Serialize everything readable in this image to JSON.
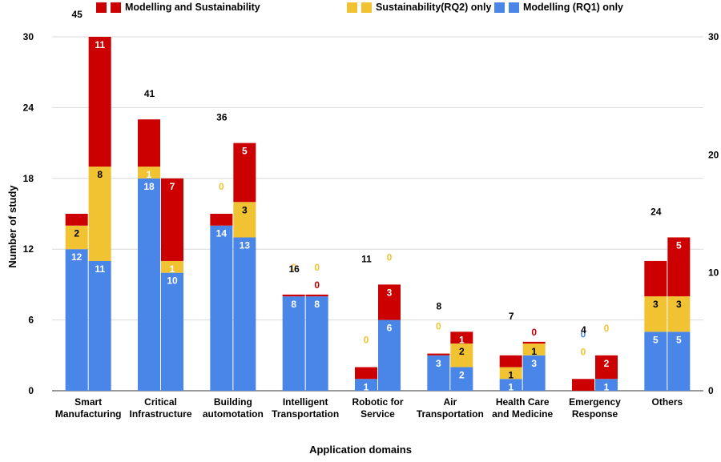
{
  "legend": {
    "both": "Modelling and Sustainability",
    "sust": "Sustainability(RQ2) only",
    "model": "Modelling (RQ1) only"
  },
  "colors": {
    "model": "#4a86e8",
    "sust": "#f1c232",
    "both": "#cc0000"
  },
  "chart_data": {
    "type": "bar",
    "stacked": true,
    "title": "",
    "xlabel": "Application domains",
    "ylabel": "Number of study",
    "ylim": [
      0,
      30
    ],
    "y_ticks": [
      0,
      6,
      12,
      18,
      24,
      30
    ],
    "y2lim": [
      0,
      30
    ],
    "y2_ticks": [
      0,
      10,
      20,
      30
    ],
    "grid": true,
    "legend_position": "top",
    "categories": [
      [
        "Smart",
        "Manufacturing"
      ],
      [
        "Critical",
        "Infrastructure"
      ],
      [
        "Building",
        "automotation"
      ],
      [
        "Intelligent",
        "Transportation"
      ],
      [
        "Robotic for",
        "Service"
      ],
      [
        "Air",
        "Transportation"
      ],
      [
        "Health Care",
        "and Medicine"
      ],
      [
        "Emergency",
        "Response"
      ],
      [
        "Others"
      ]
    ],
    "totals": [
      "45",
      "41",
      "36",
      "16",
      "11",
      "8",
      "7",
      "4",
      "24"
    ],
    "bars": [
      {
        "group": 0,
        "model": 12,
        "sust": 2,
        "both": 1,
        "labels": [
          "12",
          "2",
          ""
        ]
      },
      {
        "group": 0,
        "model": 11,
        "sust": 8,
        "both": 11,
        "labels": [
          "11",
          "8",
          "11"
        ]
      },
      {
        "group": 1,
        "model": 18,
        "sust": 1,
        "both": 4,
        "labels": [
          "18",
          "1",
          ""
        ]
      },
      {
        "group": 1,
        "model": 10,
        "sust": 1,
        "both": 7,
        "labels": [
          "10",
          "1",
          "7"
        ]
      },
      {
        "group": 2,
        "model": 14,
        "sust": 0,
        "both": 1,
        "labels": [
          "14",
          "0",
          ""
        ]
      },
      {
        "group": 2,
        "model": 13,
        "sust": 3,
        "both": 5,
        "labels": [
          "13",
          "3",
          "5"
        ]
      },
      {
        "group": 3,
        "model": 8,
        "sust": 0,
        "both": 0.15,
        "labels": [
          "8",
          "0",
          ""
        ]
      },
      {
        "group": 3,
        "model": 8,
        "sust": 0,
        "both": 0.15,
        "labels": [
          "8",
          "0",
          "0"
        ]
      },
      {
        "group": 4,
        "model": 1,
        "sust": 0,
        "both": 1,
        "labels": [
          "1",
          "0",
          ""
        ]
      },
      {
        "group": 4,
        "model": 6,
        "sust": 0,
        "both": 3,
        "labels": [
          "6",
          "0",
          "3"
        ]
      },
      {
        "group": 5,
        "model": 3,
        "sust": 0,
        "both": 0.15,
        "labels": [
          "3",
          "0",
          ""
        ]
      },
      {
        "group": 5,
        "model": 2,
        "sust": 2,
        "both": 1,
        "labels": [
          "2",
          "2",
          "1"
        ]
      },
      {
        "group": 6,
        "model": 1,
        "sust": 1,
        "both": 1,
        "labels": [
          "1",
          "1",
          ""
        ]
      },
      {
        "group": 6,
        "model": 3,
        "sust": 1,
        "both": 0.15,
        "labels": [
          "3",
          "1",
          "0"
        ]
      },
      {
        "group": 7,
        "model": 0,
        "sust": 0,
        "both": 1,
        "labels": [
          "0",
          "0",
          ""
        ]
      },
      {
        "group": 7,
        "model": 1,
        "sust": 0,
        "both": 2,
        "labels": [
          "1",
          "0",
          "2"
        ]
      },
      {
        "group": 8,
        "model": 5,
        "sust": 3,
        "both": 3,
        "labels": [
          "5",
          "3",
          ""
        ]
      },
      {
        "group": 8,
        "model": 5,
        "sust": 3,
        "both": 5,
        "labels": [
          "5",
          "3",
          "5"
        ]
      }
    ]
  }
}
